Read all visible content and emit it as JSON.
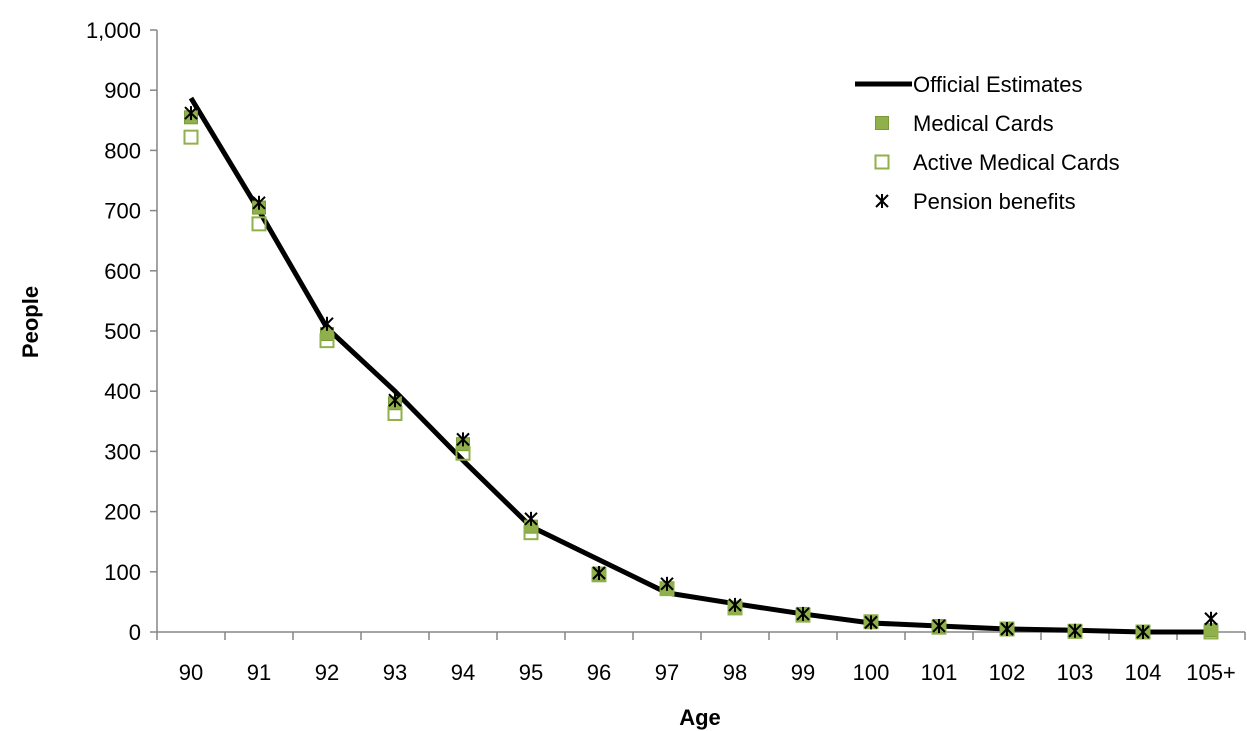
{
  "chart_data": {
    "type": "line",
    "title": "",
    "xlabel": "Age",
    "ylabel": "People",
    "categories": [
      "90",
      "91",
      "92",
      "93",
      "94",
      "95",
      "96",
      "97",
      "98",
      "99",
      "100",
      "101",
      "102",
      "103",
      "104",
      "105+"
    ],
    "ylim": [
      0,
      1000
    ],
    "yticks": [
      "0",
      "100",
      "200",
      "300",
      "400",
      "500",
      "600",
      "700",
      "800",
      "900",
      "1,000"
    ],
    "grid": false,
    "legend_position": "top-right",
    "series": [
      {
        "name": "Official Estimates",
        "style": "line",
        "color": "#000000",
        "values": [
          887,
          700,
          505,
          400,
          285,
          175,
          120,
          65,
          47,
          30,
          15,
          10,
          5,
          3,
          0,
          0
        ]
      },
      {
        "name": "Medical Cards",
        "style": "filled-square",
        "color": "#8FB04A",
        "values": [
          855,
          705,
          495,
          380,
          312,
          175,
          97,
          72,
          40,
          30,
          17,
          10,
          5,
          2,
          0,
          3
        ]
      },
      {
        "name": "Active Medical Cards",
        "style": "open-square",
        "color": "#8FB04A",
        "values": [
          822,
          678,
          484,
          363,
          297,
          165,
          95,
          72,
          40,
          28,
          17,
          8,
          5,
          1,
          0,
          0
        ]
      },
      {
        "name": "Pension benefits",
        "style": "asterisk",
        "color": "#000000",
        "values": [
          862,
          713,
          512,
          385,
          320,
          188,
          98,
          80,
          45,
          30,
          16,
          10,
          5,
          2,
          0,
          22
        ]
      }
    ]
  }
}
